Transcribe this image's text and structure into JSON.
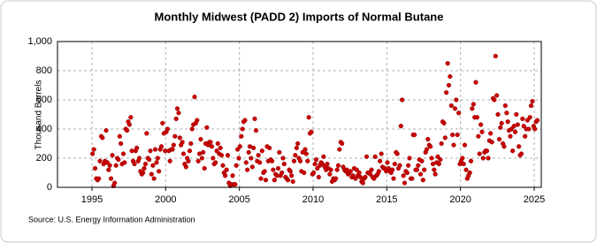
{
  "chart_data": {
    "type": "scatter",
    "title": "Monthly Midwest (PADD 2) Imports of Normal Butane",
    "y_label": "Thousand Barrels",
    "source": "Source: U.S. Energy Information Administration",
    "xlim": [
      1992.66,
      2025.48
    ],
    "xticks": [
      1995,
      2000,
      2005,
      2010,
      2015,
      2020,
      2025
    ],
    "ylim": [
      0,
      1000
    ],
    "yticks": [
      0,
      200,
      400,
      600,
      800,
      {
        "value": 1000,
        "label": "1,000"
      }
    ],
    "grid": true,
    "x": [
      1995.04,
      1995.13,
      1995.21,
      1995.29,
      1995.38,
      1995.46,
      1995.54,
      1995.63,
      1995.71,
      1995.79,
      1995.88,
      1995.96,
      1996.04,
      1996.13,
      1996.21,
      1996.29,
      1996.38,
      1996.46,
      1996.54,
      1996.63,
      1996.71,
      1996.79,
      1996.88,
      1996.96,
      1997.04,
      1997.13,
      1997.21,
      1997.29,
      1997.38,
      1997.46,
      1997.54,
      1997.63,
      1997.71,
      1997.79,
      1997.88,
      1997.96,
      1998.04,
      1998.13,
      1998.21,
      1998.29,
      1998.38,
      1998.46,
      1998.54,
      1998.63,
      1998.71,
      1998.79,
      1998.88,
      1998.96,
      1999.04,
      1999.13,
      1999.21,
      1999.29,
      1999.38,
      1999.46,
      1999.54,
      1999.63,
      1999.71,
      1999.79,
      1999.88,
      1999.96,
      2000.04,
      2000.13,
      2000.21,
      2000.29,
      2000.38,
      2000.46,
      2000.54,
      2000.63,
      2000.71,
      2000.79,
      2000.88,
      2000.96,
      2001.04,
      2001.13,
      2001.21,
      2001.29,
      2001.38,
      2001.46,
      2001.54,
      2001.63,
      2001.71,
      2001.79,
      2001.88,
      2001.96,
      2002.04,
      2002.13,
      2002.21,
      2002.29,
      2002.38,
      2002.46,
      2002.54,
      2002.63,
      2002.71,
      2002.79,
      2002.88,
      2002.96,
      2003.04,
      2003.13,
      2003.21,
      2003.29,
      2003.38,
      2003.46,
      2003.54,
      2003.63,
      2003.71,
      2003.79,
      2003.88,
      2003.96,
      2004.04,
      2004.13,
      2004.21,
      2004.29,
      2004.38,
      2004.46,
      2004.54,
      2004.63,
      2004.71,
      2004.79,
      2004.88,
      2004.96,
      2005.04,
      2005.13,
      2005.21,
      2005.29,
      2005.38,
      2005.46,
      2005.54,
      2005.63,
      2005.71,
      2005.79,
      2005.88,
      2005.96,
      2006.04,
      2006.13,
      2006.21,
      2006.29,
      2006.38,
      2006.46,
      2006.54,
      2006.63,
      2006.71,
      2006.79,
      2006.88,
      2006.96,
      2007.04,
      2007.13,
      2007.21,
      2007.29,
      2007.38,
      2007.46,
      2007.54,
      2007.63,
      2007.71,
      2007.79,
      2007.88,
      2007.96,
      2008.04,
      2008.13,
      2008.21,
      2008.29,
      2008.38,
      2008.46,
      2008.54,
      2008.63,
      2008.71,
      2008.79,
      2008.88,
      2008.96,
      2009.04,
      2009.13,
      2009.21,
      2009.29,
      2009.38,
      2009.46,
      2009.54,
      2009.63,
      2009.71,
      2009.79,
      2009.88,
      2009.96,
      2010.04,
      2010.13,
      2010.21,
      2010.29,
      2010.38,
      2010.46,
      2010.54,
      2010.63,
      2010.71,
      2010.79,
      2010.88,
      2010.96,
      2011.04,
      2011.13,
      2011.21,
      2011.29,
      2011.38,
      2011.46,
      2011.54,
      2011.63,
      2011.71,
      2011.79,
      2011.88,
      2011.96,
      2012.04,
      2012.13,
      2012.21,
      2012.29,
      2012.38,
      2012.46,
      2012.54,
      2012.63,
      2012.71,
      2012.79,
      2012.88,
      2012.96,
      2013.04,
      2013.13,
      2013.21,
      2013.29,
      2013.38,
      2013.46,
      2013.54,
      2013.63,
      2013.71,
      2013.79,
      2013.88,
      2013.96,
      2014.04,
      2014.13,
      2014.21,
      2014.29,
      2014.38,
      2014.46,
      2014.54,
      2014.63,
      2014.71,
      2014.79,
      2014.88,
      2014.96,
      2015.04,
      2015.13,
      2015.21,
      2015.29,
      2015.38,
      2015.46,
      2015.54,
      2015.63,
      2015.71,
      2015.79,
      2015.88,
      2015.96,
      2016.04,
      2016.13,
      2016.21,
      2016.29,
      2016.38,
      2016.46,
      2016.54,
      2016.63,
      2016.71,
      2016.79,
      2016.88,
      2016.96,
      2017.04,
      2017.13,
      2017.21,
      2017.29,
      2017.38,
      2017.46,
      2017.54,
      2017.63,
      2017.71,
      2017.79,
      2017.88,
      2017.96,
      2018.04,
      2018.13,
      2018.21,
      2018.29,
      2018.38,
      2018.46,
      2018.54,
      2018.63,
      2018.71,
      2018.79,
      2018.88,
      2018.96,
      2019.04,
      2019.13,
      2019.21,
      2019.29,
      2019.38,
      2019.46,
      2019.54,
      2019.63,
      2019.71,
      2019.79,
      2019.88,
      2019.96,
      2020.04,
      2020.13,
      2020.21,
      2020.29,
      2020.38,
      2020.46,
      2020.54,
      2020.63,
      2020.71,
      2020.79,
      2020.88,
      2020.96,
      2021.04,
      2021.13,
      2021.21,
      2021.29,
      2021.38,
      2021.46,
      2021.54,
      2021.63,
      2021.71,
      2021.79,
      2021.88,
      2021.96,
      2022.04,
      2022.13,
      2022.21,
      2022.29,
      2022.38,
      2022.46,
      2022.54,
      2022.63,
      2022.71,
      2022.79,
      2022.88,
      2022.96,
      2023.04,
      2023.13,
      2023.21,
      2023.29,
      2023.38,
      2023.46,
      2023.54,
      2023.63,
      2023.71,
      2023.79,
      2023.88,
      2023.96,
      2024.04,
      2024.13,
      2024.21,
      2024.29,
      2024.38,
      2024.46,
      2024.54,
      2024.63,
      2024.71,
      2024.79,
      2024.88,
      2024.96,
      2025.04,
      2025.13,
      2025.21
    ],
    "series": [
      {
        "color": "#cc0000",
        "values": [
          230,
          260,
          130,
          60,
          50,
          60,
          180,
          350,
          340,
          160,
          180,
          390,
          170,
          120,
          150,
          60,
          220,
          10,
          30,
          150,
          200,
          190,
          350,
          300,
          160,
          230,
          170,
          400,
          390,
          450,
          430,
          480,
          250,
          180,
          160,
          250,
          270,
          180,
          200,
          110,
          90,
          100,
          130,
          160,
          370,
          200,
          190,
          250,
          90,
          150,
          60,
          260,
          170,
          200,
          110,
          260,
          280,
          440,
          370,
          250,
          380,
          400,
          250,
          180,
          260,
          260,
          290,
          350,
          470,
          540,
          510,
          340,
          290,
          310,
          230,
          160,
          140,
          200,
          180,
          250,
          300,
          400,
          430,
          620,
          440,
          460,
          180,
          230,
          330,
          200,
          240,
          130,
          300,
          410,
          290,
          310,
          310,
          280,
          200,
          160,
          170,
          250,
          300,
          230,
          270,
          220,
          150,
          100,
          80,
          120,
          220,
          30,
          10,
          20,
          80,
          20,
          20,
          150,
          260,
          200,
          280,
          350,
          400,
          450,
          460,
          170,
          120,
          240,
          280,
          200,
          140,
          270,
          470,
          390,
          180,
          220,
          170,
          60,
          250,
          100,
          110,
          50,
          280,
          180,
          270,
          190,
          180,
          120,
          50,
          90,
          80,
          130,
          240,
          80,
          100,
          200,
          160,
          70,
          60,
          50,
          120,
          110,
          80,
          40,
          180,
          220,
          270,
          300,
          200,
          180,
          110,
          240,
          100,
          260,
          230,
          180,
          480,
          370,
          380,
          90,
          100,
          160,
          190,
          130,
          70,
          150,
          170,
          160,
          210,
          140,
          120,
          160,
          130,
          90,
          120,
          40,
          60,
          50,
          60,
          120,
          150,
          260,
          310,
          300,
          140,
          120,
          110,
          120,
          90,
          100,
          110,
          70,
          80,
          130,
          60,
          120,
          80,
          100,
          70,
          40,
          30,
          60,
          70,
          210,
          100,
          100,
          90,
          120,
          70,
          60,
          210,
          80,
          90,
          110,
          180,
          230,
          140,
          130,
          130,
          110,
          170,
          130,
          110,
          100,
          120,
          60,
          160,
          240,
          230,
          130,
          150,
          420,
          600,
          80,
          30,
          110,
          100,
          150,
          200,
          60,
          60,
          360,
          360,
          120,
          120,
          150,
          190,
          90,
          180,
          50,
          120,
          240,
          260,
          330,
          290,
          280,
          200,
          160,
          120,
          90,
          170,
          210,
          160,
          190,
          300,
          450,
          440,
          340,
          650,
          850,
          700,
          760,
          560,
          360,
          290,
          540,
          600,
          360,
          510,
          160,
          180,
          200,
          160,
          290,
          120,
          60,
          80,
          100,
          180,
          540,
          570,
          480,
          720,
          480,
          350,
          230,
          430,
          380,
          200,
          240,
          250,
          250,
          200,
          320,
          370,
          310,
          610,
          600,
          900,
          630,
          500,
          330,
          410,
          440,
          300,
          280,
          560,
          510,
          450,
          390,
          350,
          400,
          250,
          420,
          380,
          500,
          430,
          280,
          220,
          230,
          470,
          420,
          350,
          400,
          460,
          400,
          480,
          560,
          590,
          420,
          400,
          450,
          460
        ]
      }
    ]
  }
}
